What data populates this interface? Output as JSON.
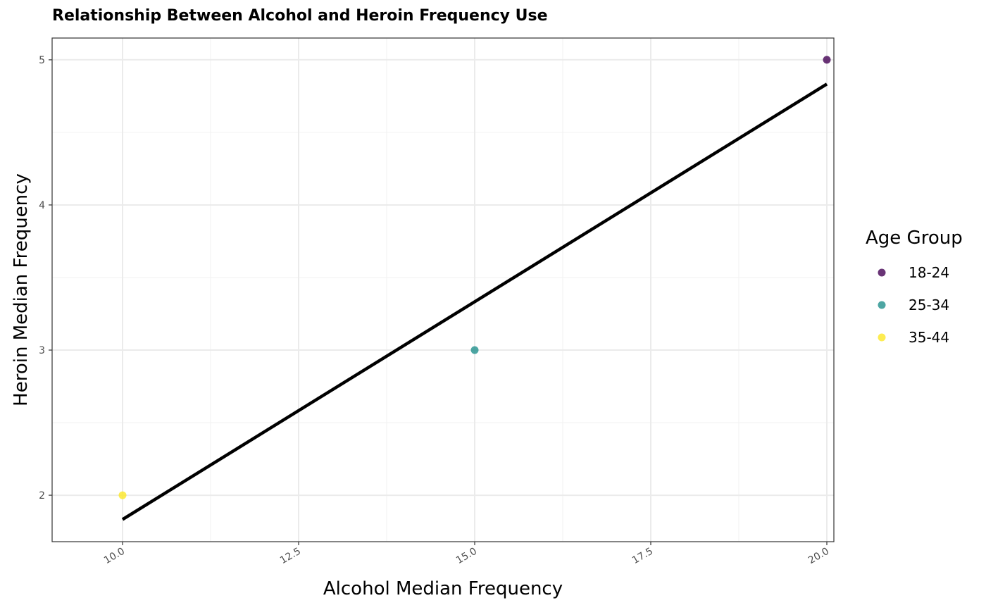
{
  "chart_data": {
    "type": "scatter",
    "title": "Relationship Between Alcohol and Heroin Frequency Use",
    "xlabel": "Alcohol Median Frequency",
    "ylabel": "Heroin Median Frequency",
    "xlim": [
      9.0,
      20.1
    ],
    "ylim": [
      1.68,
      5.15
    ],
    "x_ticks": [
      "10.0",
      "12.5",
      "15.0",
      "17.5",
      "20.0"
    ],
    "x_tick_values": [
      10.0,
      12.5,
      15.0,
      17.5,
      20.0
    ],
    "y_ticks": [
      "2",
      "3",
      "4",
      "5"
    ],
    "y_tick_values": [
      2,
      3,
      4,
      5
    ],
    "grid": true,
    "legend": {
      "title": "Age Group",
      "position": "right",
      "entries": [
        {
          "label": "18-24",
          "color": "#440154"
        },
        {
          "label": "25-34",
          "color": "#21908C"
        },
        {
          "label": "35-44",
          "color": "#FDE725"
        }
      ]
    },
    "series": [
      {
        "name": "18-24",
        "color": "#440154",
        "points": [
          {
            "x": 20.0,
            "y": 5.0
          }
        ]
      },
      {
        "name": "25-34",
        "color": "#21908C",
        "points": [
          {
            "x": 15.0,
            "y": 3.0
          }
        ]
      },
      {
        "name": "35-44",
        "color": "#FDE725",
        "points": [
          {
            "x": 10.0,
            "y": 2.0
          }
        ]
      }
    ],
    "fit_line": {
      "color": "#000000",
      "points": [
        {
          "x": 10.0,
          "y": 1.833
        },
        {
          "x": 20.0,
          "y": 4.833
        }
      ]
    }
  }
}
